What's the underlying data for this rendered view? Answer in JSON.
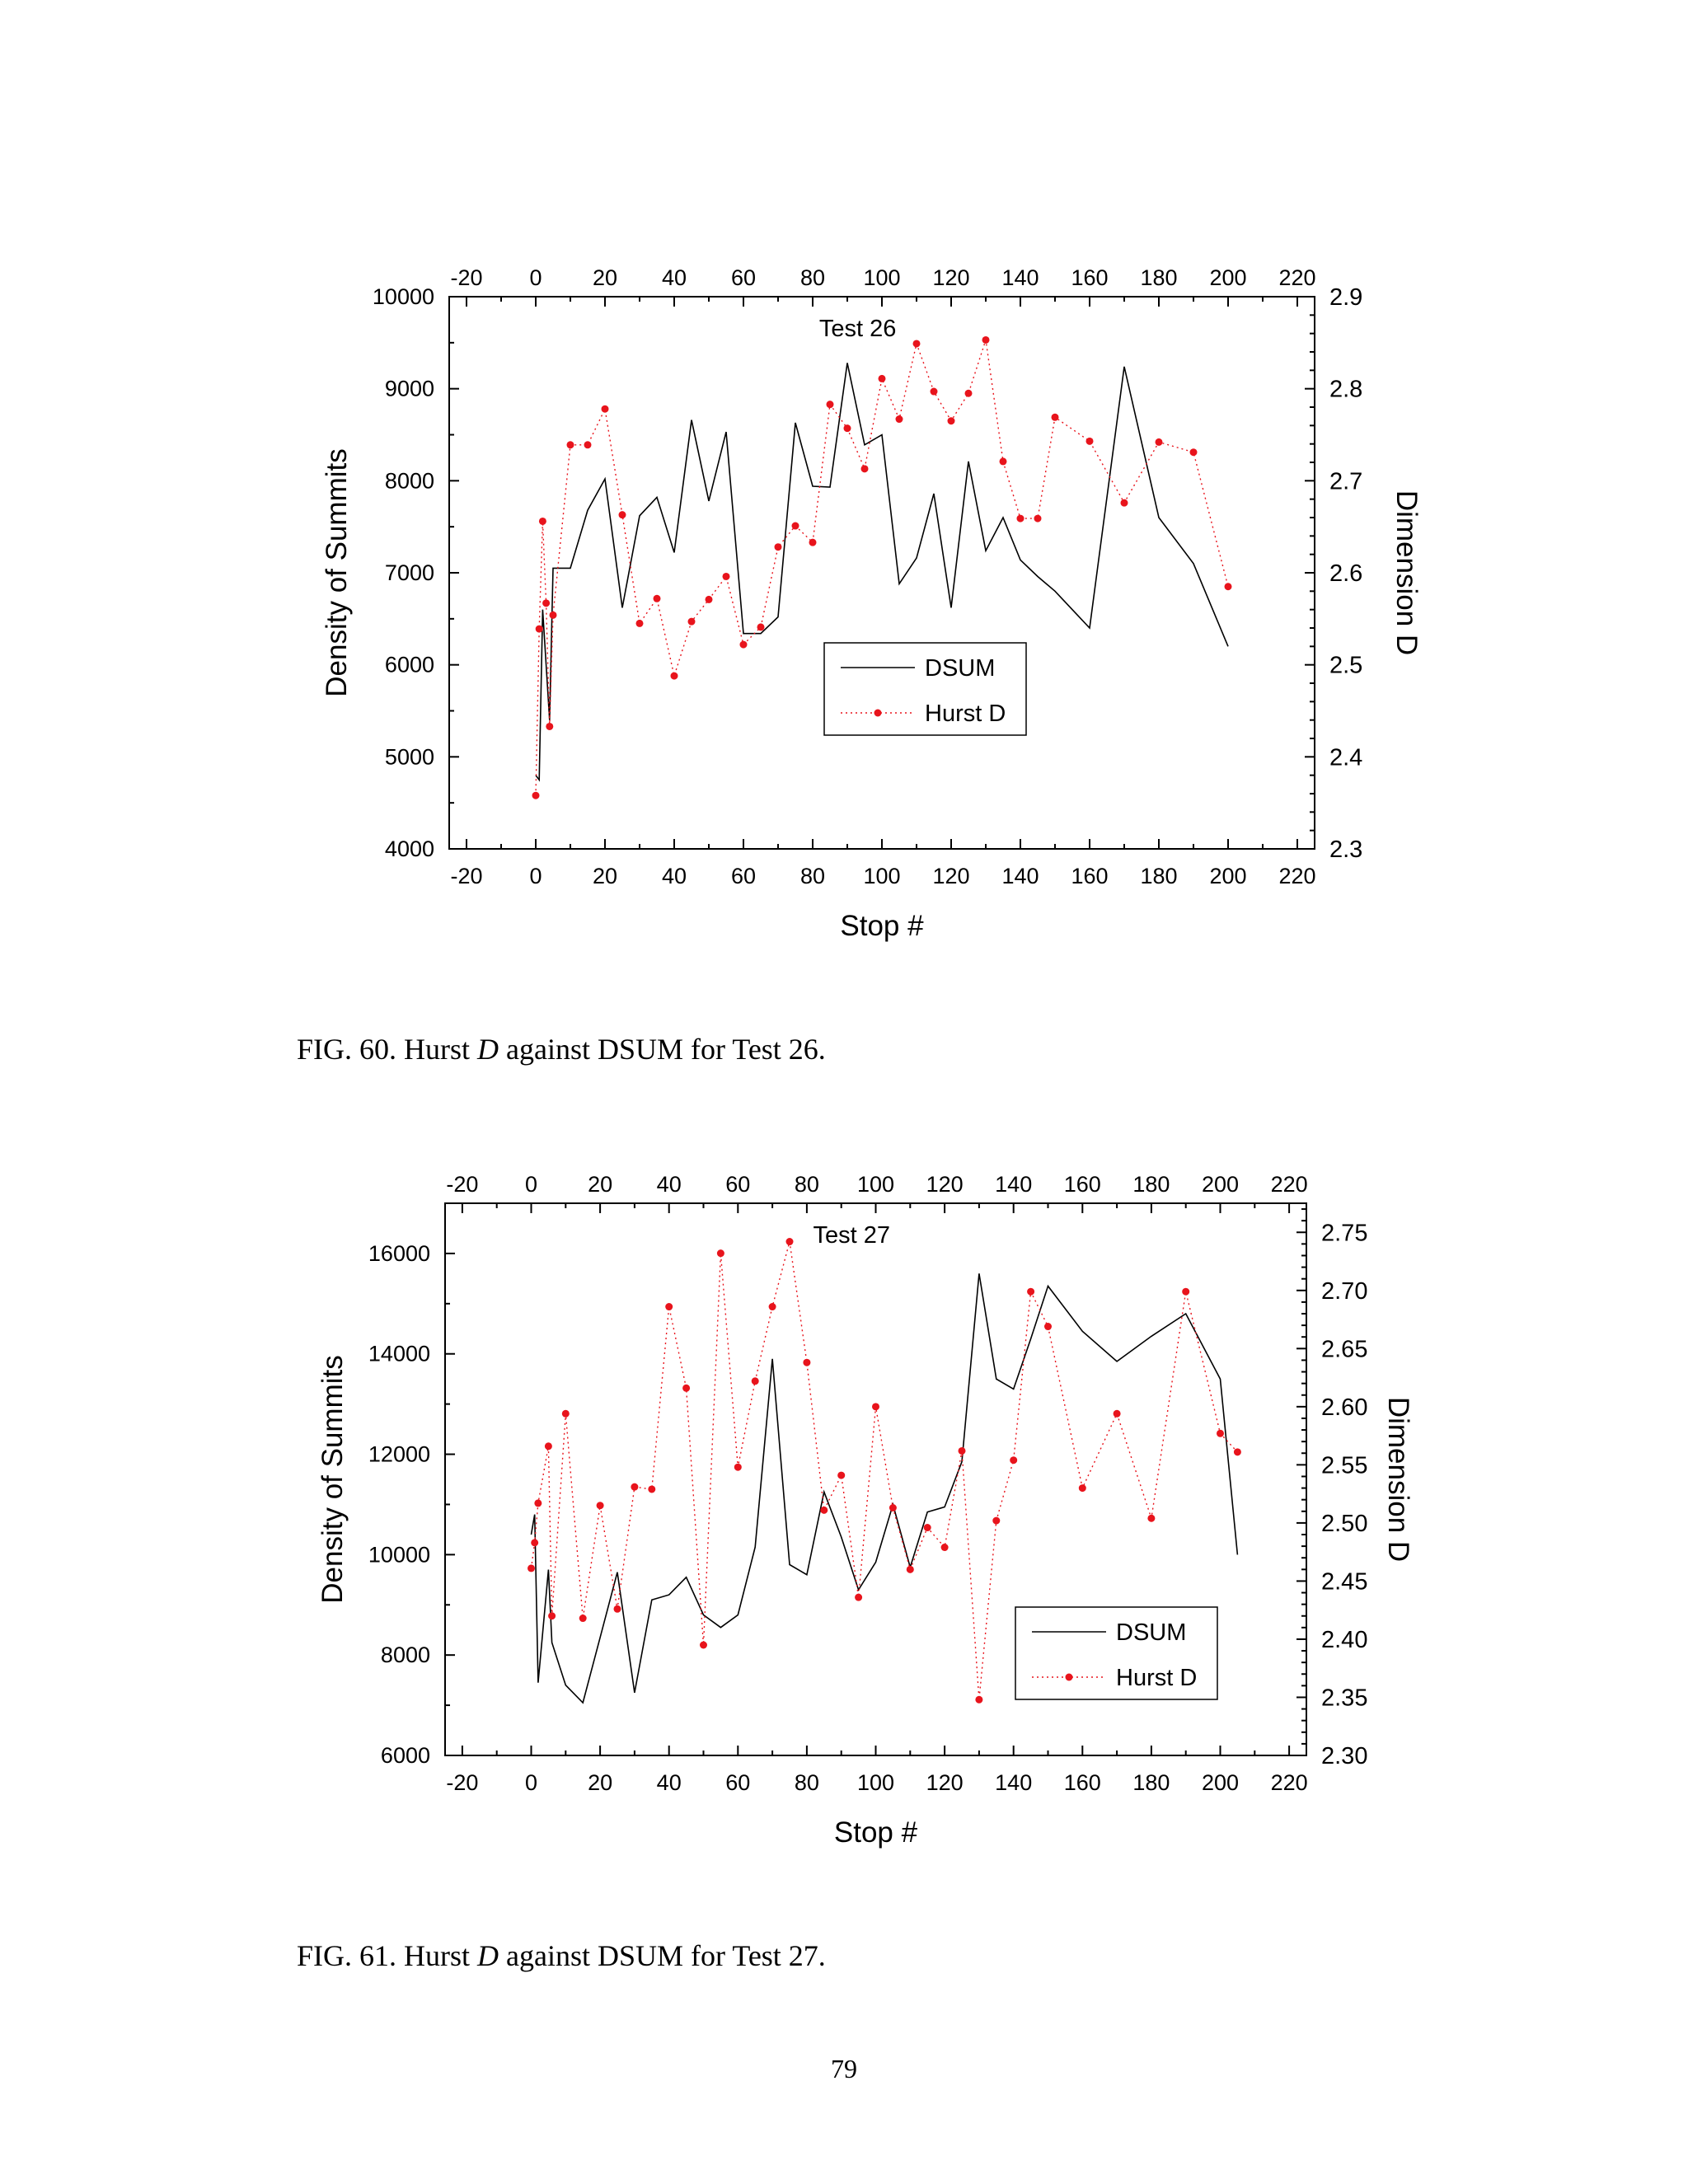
{
  "chart_data": [
    {
      "type": "line",
      "title": "Test 26",
      "xlabel": "Stop #",
      "ylabel_left": "Density of Summits",
      "ylabel_right": "Dimension D",
      "xlim": [
        -25,
        225
      ],
      "xticks": [
        -20,
        0,
        20,
        40,
        60,
        80,
        100,
        120,
        140,
        160,
        180,
        200,
        220
      ],
      "ylim_left": [
        4000,
        10000
      ],
      "yticks_left": [
        4000,
        5000,
        6000,
        7000,
        8000,
        9000,
        10000
      ],
      "ylim_right": [
        2.3,
        2.9
      ],
      "yticks_right": [
        "2.3",
        "2.4",
        "2.5",
        "2.6",
        "2.7",
        "2.8",
        "2.9"
      ],
      "legend_position": "center-right",
      "series": [
        {
          "name": "DSUM",
          "axis": "left",
          "style": "solid",
          "color": "#000000",
          "x": [
            0,
            1,
            2,
            4,
            5,
            10,
            15,
            20,
            25,
            30,
            35,
            40,
            45,
            50,
            55,
            60,
            65,
            70,
            75,
            80,
            85,
            90,
            95,
            100,
            105,
            110,
            115,
            120,
            125,
            130,
            135,
            140,
            145,
            150,
            155,
            160,
            170,
            180,
            190,
            200
          ],
          "y": [
            4800,
            4750,
            6600,
            5400,
            7050,
            7050,
            7680,
            8020,
            6620,
            7620,
            7820,
            7220,
            8660,
            7780,
            8530,
            6340,
            6340,
            6520,
            8630,
            7940,
            7930,
            9280,
            8390,
            8500,
            6880,
            7160,
            7860,
            6620,
            8210,
            7240,
            7600,
            7140,
            6960,
            6800,
            6600,
            6400,
            9240,
            7600,
            7100,
            6200
          ]
        },
        {
          "name": "Hurst D",
          "axis": "right",
          "style": "dotted-markers",
          "color": "#e8141c",
          "x": [
            0,
            1,
            2,
            3,
            4,
            5,
            10,
            15,
            20,
            25,
            30,
            35,
            40,
            45,
            50,
            55,
            60,
            65,
            70,
            75,
            80,
            85,
            90,
            95,
            100,
            105,
            110,
            115,
            120,
            125,
            130,
            135,
            140,
            145,
            150,
            160,
            170,
            180,
            190,
            200
          ],
          "y": [
            2.358,
            2.539,
            2.656,
            2.567,
            2.433,
            2.554,
            2.739,
            2.739,
            2.778,
            2.663,
            2.545,
            2.572,
            2.488,
            2.547,
            2.571,
            2.596,
            2.522,
            2.541,
            2.628,
            2.651,
            2.633,
            2.783,
            2.757,
            2.713,
            2.811,
            2.767,
            2.849,
            2.797,
            2.765,
            2.795,
            2.853,
            2.721,
            2.659,
            2.659,
            2.769,
            2.743,
            2.676,
            2.742,
            2.731,
            2.585
          ]
        }
      ]
    },
    {
      "type": "line",
      "title": "Test 27",
      "xlabel": "Stop #",
      "ylabel_left": "Density of Summits",
      "ylabel_right": "Dimension D",
      "xlim": [
        -25,
        225
      ],
      "xticks": [
        -20,
        0,
        20,
        40,
        60,
        80,
        100,
        120,
        140,
        160,
        180,
        200,
        220
      ],
      "ylim_left": [
        6000,
        17000
      ],
      "yticks_left": [
        6000,
        8000,
        10000,
        12000,
        14000,
        16000
      ],
      "ylim_right": [
        2.3,
        2.775
      ],
      "yticks_right": [
        "2.30",
        "2.35",
        "2.40",
        "2.45",
        "2.50",
        "2.55",
        "2.60",
        "2.65",
        "2.70",
        "2.75"
      ],
      "legend_position": "bottom-right",
      "series": [
        {
          "name": "DSUM",
          "axis": "left",
          "style": "solid",
          "color": "#000000",
          "x": [
            0,
            1,
            2,
            5,
            6,
            10,
            15,
            20,
            25,
            30,
            35,
            40,
            45,
            50,
            55,
            60,
            65,
            70,
            75,
            80,
            85,
            90,
            95,
            100,
            105,
            110,
            115,
            120,
            125,
            130,
            135,
            140,
            145,
            150,
            160,
            170,
            180,
            190,
            200,
            205
          ],
          "y": [
            10400,
            10800,
            7450,
            9700,
            8250,
            7400,
            7050,
            8350,
            9650,
            7250,
            9100,
            9200,
            9550,
            8800,
            8550,
            8800,
            10150,
            13900,
            9800,
            9600,
            11250,
            10350,
            9300,
            9850,
            11000,
            9750,
            10850,
            10950,
            11850,
            15600,
            13500,
            13300,
            14300,
            15350,
            14450,
            13850,
            14350,
            14800,
            13500,
            10000
          ]
        },
        {
          "name": "Hurst D",
          "axis": "right",
          "style": "dotted-markers",
          "color": "#e8141c",
          "x": [
            0,
            1,
            2,
            5,
            6,
            10,
            15,
            20,
            25,
            30,
            35,
            40,
            45,
            50,
            55,
            60,
            65,
            70,
            75,
            80,
            85,
            90,
            95,
            100,
            105,
            110,
            115,
            120,
            125,
            130,
            135,
            140,
            145,
            150,
            160,
            170,
            180,
            190,
            200,
            205
          ],
          "y": [
            2.461,
            2.483,
            2.517,
            2.566,
            2.42,
            2.594,
            2.418,
            2.515,
            2.426,
            2.531,
            2.529,
            2.686,
            2.616,
            2.395,
            2.732,
            2.548,
            2.622,
            2.686,
            2.742,
            2.638,
            2.511,
            2.541,
            2.436,
            2.6,
            2.513,
            2.46,
            2.496,
            2.479,
            2.562,
            2.348,
            2.502,
            2.554,
            2.699,
            2.669,
            2.53,
            2.594,
            2.504,
            2.699,
            2.577,
            2.561
          ]
        }
      ]
    }
  ],
  "captions": {
    "fig60": {
      "prefix": "FIG. 60. Hurst ",
      "var": "D",
      "suffix": " against DSUM for Test 26."
    },
    "fig61": {
      "prefix": "FIG. 61. Hurst ",
      "var": "D",
      "suffix": " against DSUM for Test 27."
    }
  },
  "page_number": "79"
}
